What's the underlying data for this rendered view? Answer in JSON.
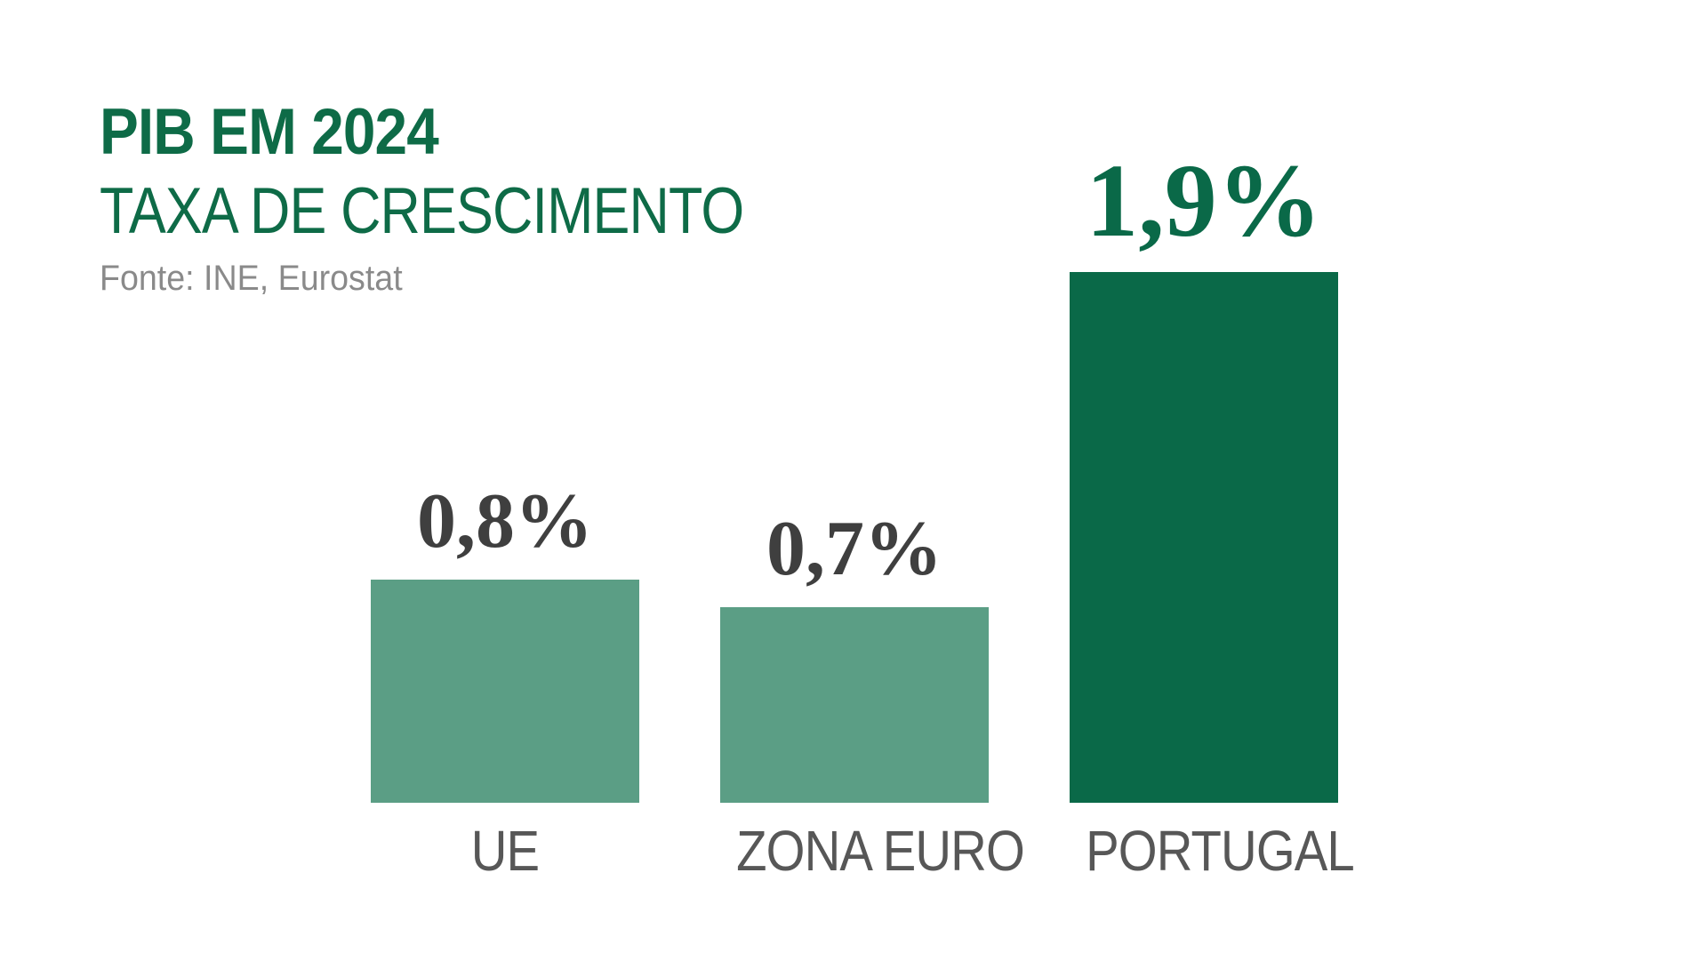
{
  "header": {
    "title": "PIB EM 2024",
    "subtitle": "TAXA DE CRESCIMENTO",
    "source": "Fonte: INE, Eurostat"
  },
  "colors": {
    "title_green": "#0e6b47",
    "bar_green_light": "#5b9e85",
    "bar_green_dark": "#0a6948",
    "value_gray": "#3f3f3f",
    "category_gray": "#575757",
    "source_gray": "#8a8a8a",
    "background": "#ffffff"
  },
  "chart_data": {
    "type": "bar",
    "title": "PIB EM 2024",
    "subtitle": "TAXA DE CRESCIMENTO",
    "source": "Fonte: INE, Eurostat",
    "categories": [
      "UE",
      "ZONA EURO",
      "PORTUGAL"
    ],
    "values": [
      0.8,
      0.7,
      1.9
    ],
    "value_labels": [
      "0,8%",
      "0,7%",
      "1,9%"
    ],
    "unit": "%",
    "bar_colors": [
      "#5b9e85",
      "#5b9e85",
      "#0a6948"
    ],
    "value_label_colors": [
      "#3f3f3f",
      "#3f3f3f",
      "#0a6948"
    ],
    "highlight_index": 2,
    "ylim": [
      0,
      1.9
    ],
    "grid": false,
    "legend": false,
    "xlabel": "",
    "ylabel": ""
  }
}
